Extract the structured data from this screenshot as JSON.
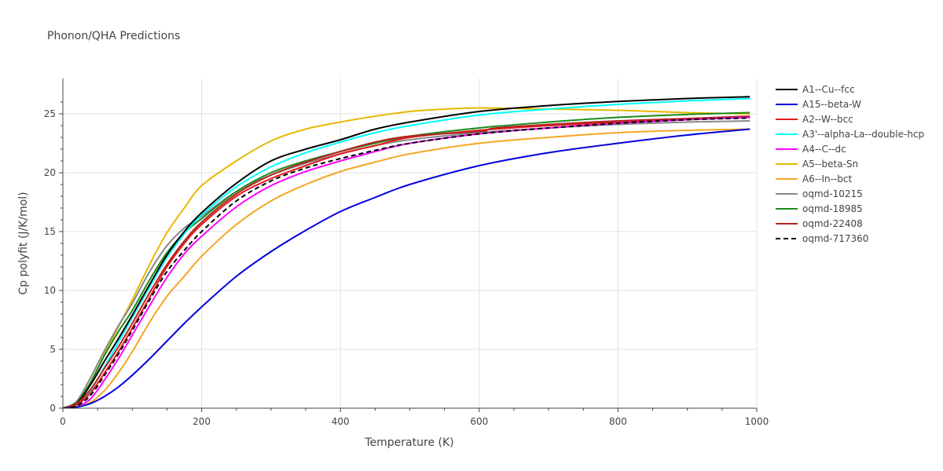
{
  "chart_data": {
    "type": "line",
    "title": "Phonon/QHA Predictions",
    "xlabel": "Temperature (K)",
    "ylabel": "Cp polyfit (J/K/mol)",
    "xlim": [
      0,
      1000
    ],
    "ylim": [
      0,
      28
    ],
    "xticks": [
      0,
      200,
      400,
      600,
      800,
      1000
    ],
    "yticks": [
      0,
      5,
      10,
      15,
      20,
      25
    ],
    "grid": true,
    "legend_position": "right",
    "series": [
      {
        "name": "A1--Cu--fcc",
        "color": "#000000",
        "dash": false,
        "x": [
          0,
          20,
          40,
          60,
          80,
          100,
          125,
          150,
          175,
          200,
          250,
          300,
          350,
          400,
          450,
          500,
          600,
          700,
          800,
          900,
          990
        ],
        "y": [
          0,
          0.4,
          2.0,
          4.0,
          5.9,
          7.9,
          10.5,
          13.0,
          15.0,
          16.6,
          19.1,
          21.0,
          22.0,
          22.8,
          23.7,
          24.3,
          25.2,
          25.7,
          26.05,
          26.3,
          26.45
        ]
      },
      {
        "name": "A15--beta-W",
        "color": "#0000dd",
        "dash": false,
        "x": [
          0,
          20,
          40,
          60,
          80,
          100,
          125,
          150,
          175,
          200,
          250,
          300,
          350,
          400,
          450,
          500,
          600,
          700,
          800,
          900,
          990
        ],
        "y": [
          0,
          0.1,
          0.4,
          1.0,
          1.8,
          2.8,
          4.2,
          5.7,
          7.2,
          8.6,
          11.2,
          13.3,
          15.1,
          16.7,
          17.9,
          19.0,
          20.6,
          21.7,
          22.5,
          23.2,
          23.7
        ]
      },
      {
        "name": "A2--W--bcc",
        "color": "#e41a1c",
        "dash": false,
        "x": [
          0,
          20,
          40,
          60,
          80,
          100,
          125,
          150,
          175,
          200,
          250,
          300,
          350,
          400,
          450,
          500,
          600,
          700,
          800,
          900,
          990
        ],
        "y": [
          0,
          0.3,
          1.3,
          3.0,
          4.8,
          6.8,
          9.4,
          12.0,
          14.0,
          15.6,
          18.0,
          19.5,
          20.6,
          21.6,
          22.3,
          23.0,
          23.6,
          24.0,
          24.3,
          24.55,
          24.7
        ]
      },
      {
        "name": "A3'--alpha-La--double-hcp",
        "color": "#00ffff",
        "dash": false,
        "x": [
          0,
          20,
          40,
          60,
          80,
          100,
          125,
          150,
          175,
          200,
          250,
          300,
          350,
          400,
          450,
          500,
          600,
          700,
          800,
          900,
          990
        ],
        "y": [
          0,
          0.3,
          1.5,
          3.5,
          5.6,
          7.7,
          10.3,
          12.8,
          14.8,
          16.4,
          18.8,
          20.5,
          21.7,
          22.6,
          23.4,
          24.0,
          24.9,
          25.4,
          25.8,
          26.1,
          26.3
        ]
      },
      {
        "name": "A4--C--dc",
        "color": "#ff00ff",
        "dash": false,
        "x": [
          0,
          20,
          40,
          60,
          80,
          100,
          125,
          150,
          175,
          200,
          250,
          300,
          350,
          400,
          450,
          500,
          600,
          700,
          800,
          900,
          990
        ],
        "y": [
          0,
          0.1,
          0.8,
          2.4,
          4.2,
          6.2,
          8.7,
          11.1,
          13.1,
          14.6,
          17.1,
          18.9,
          20.1,
          21.0,
          21.8,
          22.5,
          23.3,
          23.8,
          24.2,
          24.5,
          24.7
        ]
      },
      {
        "name": "A5--beta-Sn",
        "color": "#e6b800",
        "dash": false,
        "x": [
          0,
          20,
          40,
          60,
          80,
          100,
          125,
          150,
          175,
          200,
          250,
          300,
          350,
          400,
          450,
          500,
          550,
          600,
          700,
          800,
          900,
          990
        ],
        "y": [
          0,
          0.5,
          2.2,
          4.6,
          6.9,
          9.2,
          12.2,
          14.9,
          17.0,
          18.9,
          21.0,
          22.7,
          23.7,
          24.3,
          24.8,
          25.2,
          25.4,
          25.5,
          25.4,
          25.3,
          25.1,
          25.0
        ]
      },
      {
        "name": "A6--In--bct",
        "color": "#f5a623",
        "dash": false,
        "x": [
          0,
          20,
          40,
          60,
          80,
          100,
          125,
          150,
          175,
          200,
          250,
          300,
          350,
          400,
          450,
          500,
          600,
          700,
          800,
          900,
          990
        ],
        "y": [
          0,
          0.1,
          0.5,
          1.5,
          3.0,
          4.8,
          7.3,
          9.5,
          11.2,
          12.9,
          15.6,
          17.6,
          19.0,
          20.1,
          20.9,
          21.6,
          22.5,
          23.0,
          23.4,
          23.6,
          23.7
        ]
      },
      {
        "name": "oqmd-10215",
        "color": "#888888",
        "dash": false,
        "x": [
          0,
          20,
          40,
          60,
          80,
          100,
          125,
          150,
          175,
          200,
          250,
          300,
          350,
          400,
          450,
          500,
          600,
          700,
          800,
          900,
          990
        ],
        "y": [
          0,
          0.6,
          2.6,
          4.9,
          7.0,
          8.9,
          11.6,
          13.8,
          15.3,
          16.3,
          18.4,
          19.8,
          20.8,
          21.6,
          22.3,
          22.8,
          23.4,
          23.8,
          24.1,
          24.3,
          24.4
        ]
      },
      {
        "name": "oqmd-18985",
        "color": "#1a8a1a",
        "dash": false,
        "x": [
          0,
          20,
          40,
          60,
          80,
          100,
          125,
          150,
          175,
          200,
          250,
          300,
          350,
          400,
          450,
          500,
          600,
          700,
          800,
          900,
          990
        ],
        "y": [
          0,
          0.5,
          2.2,
          4.5,
          6.5,
          8.3,
          10.9,
          13.2,
          14.9,
          16.1,
          18.4,
          20.0,
          21.0,
          21.8,
          22.5,
          23.1,
          23.8,
          24.3,
          24.7,
          24.95,
          25.1
        ]
      },
      {
        "name": "oqmd-22408",
        "color": "#b22222",
        "dash": false,
        "x": [
          0,
          20,
          40,
          60,
          80,
          100,
          125,
          150,
          175,
          200,
          250,
          300,
          350,
          400,
          450,
          500,
          600,
          610,
          625,
          700,
          800,
          900,
          990
        ],
        "y": [
          0,
          0.4,
          1.6,
          3.4,
          5.2,
          7.2,
          9.8,
          12.2,
          14.2,
          15.8,
          18.2,
          19.8,
          20.9,
          21.8,
          22.6,
          23.1,
          23.5,
          23.6,
          23.8,
          24.1,
          24.4,
          24.6,
          24.8
        ]
      },
      {
        "name": "oqmd-717360",
        "color": "#000000",
        "dash": true,
        "x": [
          0,
          20,
          40,
          60,
          80,
          100,
          125,
          150,
          175,
          200,
          250,
          300,
          350,
          400,
          450,
          500,
          600,
          700,
          800,
          900,
          990
        ],
        "y": [
          0,
          0.2,
          1.1,
          2.8,
          4.6,
          6.6,
          9.2,
          11.6,
          13.4,
          15.0,
          17.6,
          19.3,
          20.4,
          21.2,
          21.9,
          22.5,
          23.3,
          23.8,
          24.2,
          24.5,
          24.65
        ]
      }
    ]
  }
}
